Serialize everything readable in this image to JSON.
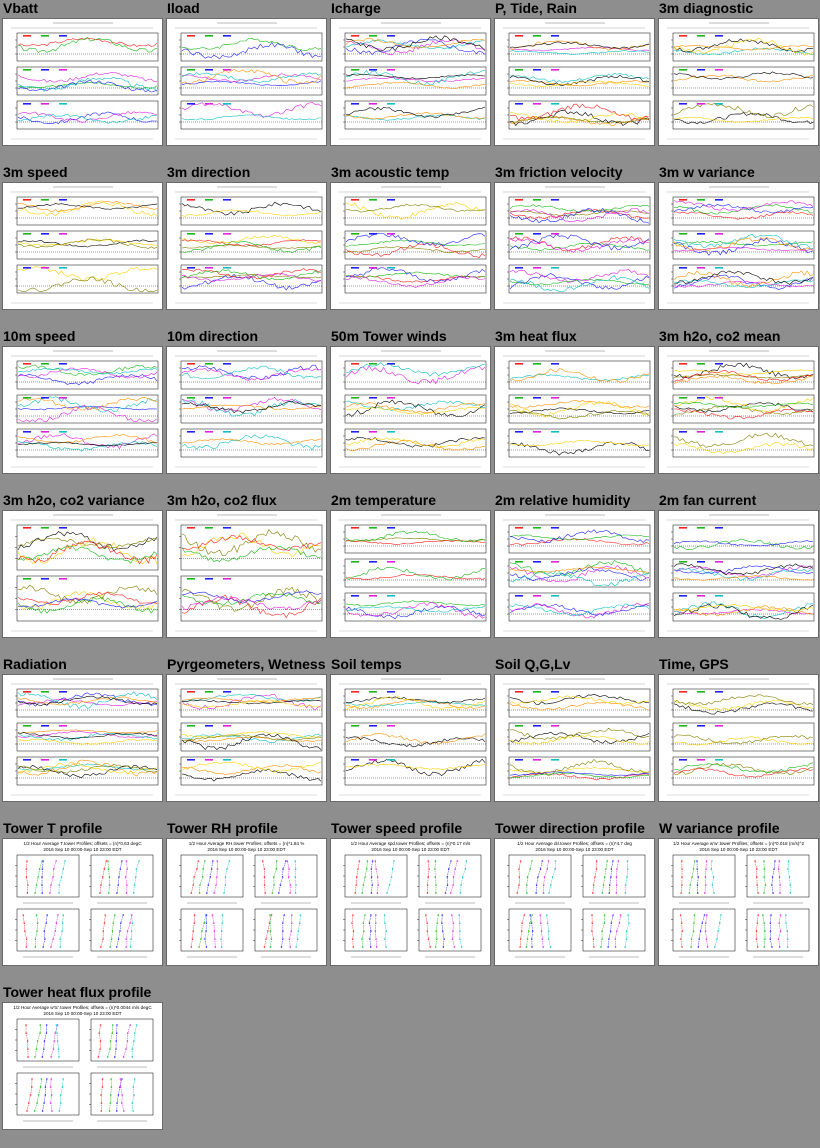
{
  "page": {
    "background": "#8e8e8e"
  },
  "series_colors": [
    "#ff2020",
    "#18b818",
    "#2020ff",
    "#e020e0",
    "#10c0c0",
    "#ff9000",
    "#000000",
    "#ffd000",
    "#808000"
  ],
  "plots": [
    {
      "title": "Vbatt",
      "kind": "ts",
      "panels": 3,
      "icon": "line-plot-icon"
    },
    {
      "title": "Iload",
      "kind": "ts",
      "panels": 3,
      "icon": "line-plot-icon"
    },
    {
      "title": "Icharge",
      "kind": "ts",
      "panels": 3,
      "icon": "line-plot-icon"
    },
    {
      "title": "P, Tide, Rain",
      "kind": "ts",
      "panels": 3,
      "icon": "line-plot-icon"
    },
    {
      "title": "3m diagnostic",
      "kind": "ts",
      "panels": 3,
      "icon": "line-plot-icon"
    },
    {
      "title": "3m speed",
      "kind": "ts",
      "panels": 3,
      "icon": "line-plot-icon"
    },
    {
      "title": "3m direction",
      "kind": "ts",
      "panels": 3,
      "icon": "line-plot-icon"
    },
    {
      "title": "3m acoustic temp",
      "kind": "ts",
      "panels": 3,
      "icon": "line-plot-icon"
    },
    {
      "title": "3m friction velocity",
      "kind": "ts",
      "panels": 3,
      "icon": "line-plot-icon"
    },
    {
      "title": "3m w variance",
      "kind": "ts",
      "panels": 3,
      "icon": "line-plot-icon"
    },
    {
      "title": "10m speed",
      "kind": "ts",
      "panels": 3,
      "icon": "line-plot-icon"
    },
    {
      "title": "10m direction",
      "kind": "ts",
      "panels": 3,
      "icon": "line-plot-icon"
    },
    {
      "title": "50m Tower winds",
      "kind": "ts",
      "panels": 3,
      "icon": "line-plot-icon"
    },
    {
      "title": "3m heat flux",
      "kind": "ts",
      "panels": 3,
      "icon": "line-plot-icon"
    },
    {
      "title": "3m h2o, co2 mean",
      "kind": "ts",
      "panels": 3,
      "icon": "line-plot-icon"
    },
    {
      "title": "3m h2o, co2 variance",
      "kind": "ts",
      "panels": 2,
      "icon": "line-plot-icon"
    },
    {
      "title": "3m h2o, co2 flux",
      "kind": "ts",
      "panels": 2,
      "icon": "line-plot-icon"
    },
    {
      "title": "2m temperature",
      "kind": "ts",
      "panels": 3,
      "icon": "line-plot-icon"
    },
    {
      "title": "2m relative humidity",
      "kind": "ts",
      "panels": 3,
      "icon": "line-plot-icon"
    },
    {
      "title": "2m fan current",
      "kind": "ts",
      "panels": 3,
      "icon": "line-plot-icon"
    },
    {
      "title": "Radiation",
      "kind": "ts",
      "panels": 3,
      "icon": "line-plot-icon"
    },
    {
      "title": "Pyrgeometers, Wetness",
      "kind": "ts",
      "panels": 3,
      "icon": "line-plot-icon"
    },
    {
      "title": "Soil temps",
      "kind": "ts",
      "panels": 3,
      "icon": "line-plot-icon"
    },
    {
      "title": "Soil Q,G,Lv",
      "kind": "ts",
      "panels": 3,
      "icon": "line-plot-icon"
    },
    {
      "title": "Time, GPS",
      "kind": "ts",
      "panels": 3,
      "icon": "line-plot-icon"
    },
    {
      "title": "Tower T profile",
      "kind": "profile",
      "header": "1/2 Hour Average T.tower Profiles; offsets = (n)*0.63 degC",
      "subheader": "2016 Sep 10 00:00-Sep 10 23:00 EDT",
      "icon": "profile-plot-icon"
    },
    {
      "title": "Tower RH profile",
      "kind": "profile",
      "header": "1/2 Hour Average RH.tower Profiles; offsets = (n)*1.84 %",
      "subheader": "2016 Sep 10 00:00-Sep 10 23:00 EDT",
      "icon": "profile-plot-icon"
    },
    {
      "title": "Tower speed profile",
      "kind": "profile",
      "header": "1/2 Hour Average spd.tower Profiles; offsets = (n)*0.17 m/s",
      "subheader": "2016 Sep 10 00:00-Sep 10 23:00 EDT",
      "icon": "profile-plot-icon"
    },
    {
      "title": "Tower direction profile",
      "kind": "profile",
      "header": "1/2 Hour Average dir.tower Profiles; offsets = (n)*4.7 deg",
      "subheader": "2016 Sep 10 00:00-Sep 10 23:00 EDT",
      "icon": "profile-plot-icon"
    },
    {
      "title": "W variance profile",
      "kind": "profile",
      "header": "1/2 Hour Average w'w'.tower Profiles; offsets = (n)*0.018 (m/s)^2",
      "subheader": "2016 Sep 10 00:00-Sep 10 23:00 EDT",
      "icon": "profile-plot-icon"
    },
    {
      "title": "Tower heat flux profile",
      "kind": "profile",
      "header": "1/2 Hour Average w'tc'.tower Profiles; offsets = (n)*0.0044 m/s degC",
      "subheader": "2016 Sep 10 00:00-Sep 10 23:00 EDT",
      "icon": "profile-plot-icon"
    }
  ]
}
